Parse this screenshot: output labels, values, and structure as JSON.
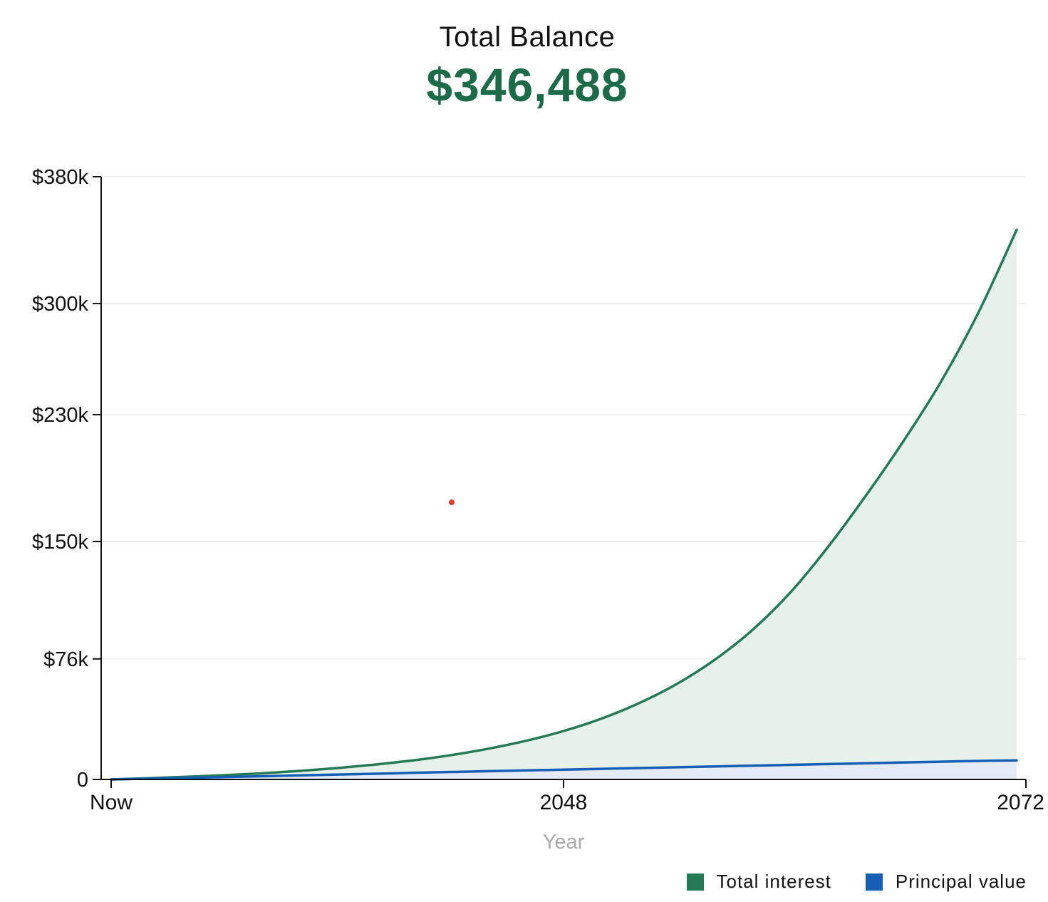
{
  "header": {
    "label": "Total Balance",
    "value": "$346,488"
  },
  "colors": {
    "interest": "#237a55",
    "interest_fill": "#e6f1eb",
    "principal": "#1560b5",
    "principal_fill": "#e4ebf6",
    "value_text": "#1c6b48",
    "grid": "#ececec",
    "axis": "#111111",
    "axis_title": "#aaaaaa",
    "marker": "#e53935"
  },
  "chart_data": {
    "type": "area",
    "title": "Total Balance",
    "xlabel": "Year",
    "ylabel": "",
    "x_ticks": [
      "Now",
      "2048",
      "2072"
    ],
    "y_ticks": [
      "$380k",
      "$300k",
      "$230k",
      "$150k",
      "$76k",
      "0"
    ],
    "y_tick_values": [
      380000,
      300000,
      230000,
      150000,
      76000,
      0
    ],
    "ylim": [
      0,
      380000
    ],
    "x": [
      "Now",
      "2026",
      "2028",
      "2030",
      "2032",
      "2034",
      "2036",
      "2038",
      "2040",
      "2042",
      "2044",
      "2046",
      "2048",
      "2050",
      "2052",
      "2054",
      "2056",
      "2058",
      "2060",
      "2062",
      "2064",
      "2066",
      "2068",
      "2070",
      "2072"
    ],
    "series": [
      {
        "name": "Total interest",
        "values": [
          0,
          800,
          1700,
          2700,
          3900,
          5400,
          7200,
          9400,
          12000,
          15300,
          19400,
          24400,
          30600,
          38400,
          48200,
          60300,
          75500,
          94300,
          117800,
          146600,
          178800,
          213300,
          251000,
          295000,
          346488
        ]
      },
      {
        "name": "Principal value",
        "values": [
          0,
          500,
          1000,
          1500,
          2000,
          2600,
          3100,
          3600,
          4200,
          4700,
          5200,
          5700,
          6200,
          6700,
          7200,
          7700,
          8200,
          8700,
          9200,
          9700,
          10200,
          10700,
          11200,
          11700,
          12000
        ]
      }
    ],
    "grid": true,
    "legend_position": "bottom-right"
  }
}
